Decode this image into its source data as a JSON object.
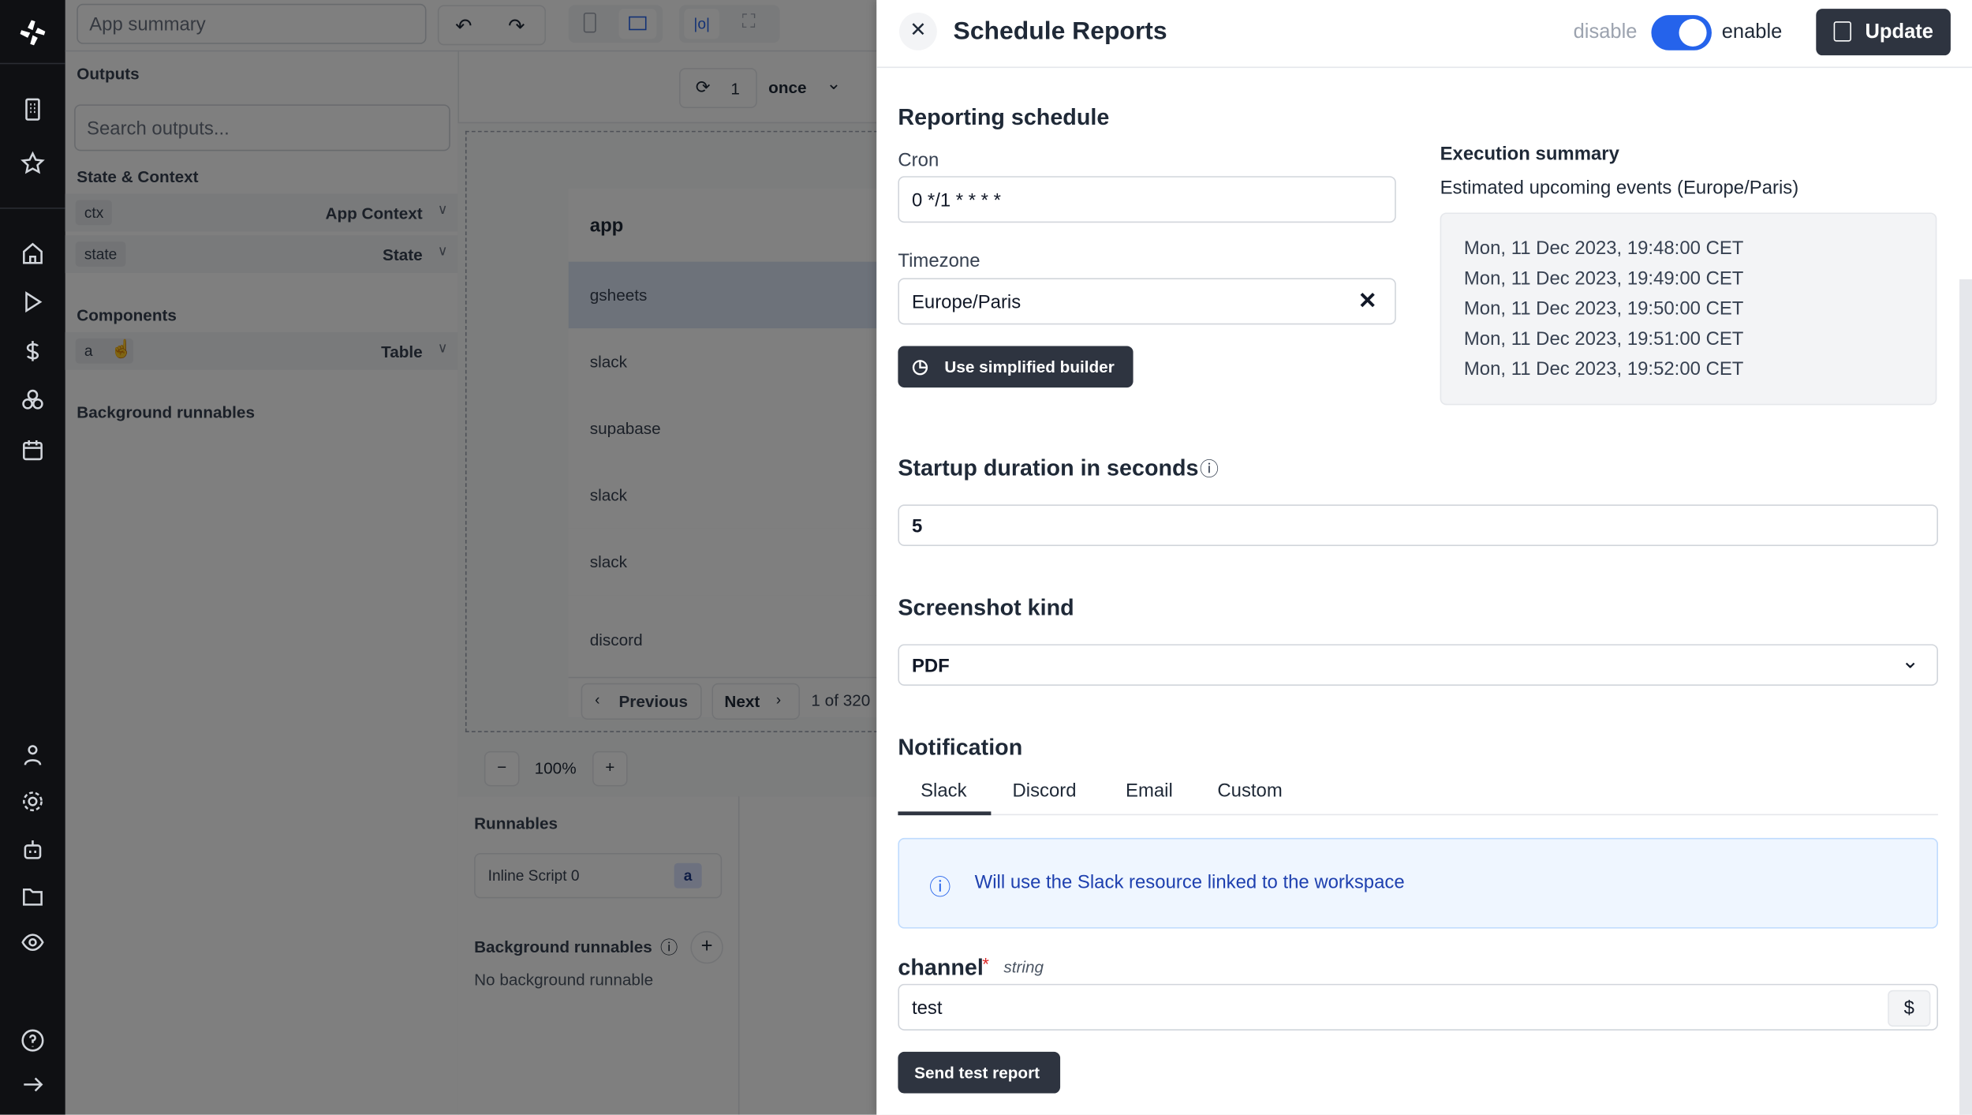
{
  "app": {
    "summary_placeholder": "App summary",
    "outputs_title": "Outputs",
    "search_placeholder": "Search outputs...",
    "state_context_title": "State & Context",
    "rows": [
      {
        "chip": "ctx",
        "type": "App Context"
      },
      {
        "chip": "state",
        "type": "State"
      }
    ],
    "components_title": "Components",
    "component": {
      "chip": "a",
      "type": "Table"
    },
    "background_title": "Background runnables",
    "refresh_count": "1",
    "refresh_mode": "once",
    "table": {
      "header": "app",
      "rows": [
        "gsheets",
        "slack",
        "supabase",
        "slack",
        "slack",
        "discord"
      ],
      "previous": "Previous",
      "next": "Next",
      "page_info": "1 of 320"
    },
    "zoom": "100%",
    "runnables_title": "Runnables",
    "runnable": {
      "name": "Inline Script 0",
      "badge": "a"
    },
    "bg_runnables_title": "Background runnables",
    "no_bg": "No background runnable"
  },
  "panel": {
    "title": "Schedule Reports",
    "disable": "disable",
    "enable": "enable",
    "enabled": true,
    "update": "Update",
    "reporting_title": "Reporting schedule",
    "cron_label": "Cron",
    "cron_value": "0 */1 * * * *",
    "timezone_label": "Timezone",
    "timezone_value": "Europe/Paris",
    "simplified_builder": "Use simplified builder",
    "exec_title": "Execution summary",
    "exec_subtitle": "Estimated upcoming events (Europe/Paris)",
    "events": [
      "Mon, 11 Dec 2023, 19:48:00 CET",
      "Mon, 11 Dec 2023, 19:49:00 CET",
      "Mon, 11 Dec 2023, 19:50:00 CET",
      "Mon, 11 Dec 2023, 19:51:00 CET",
      "Mon, 11 Dec 2023, 19:52:00 CET"
    ],
    "startup_title": "Startup duration in seconds",
    "startup_value": "5",
    "screenshot_title": "Screenshot kind",
    "screenshot_value": "PDF",
    "notification_title": "Notification",
    "tabs": [
      "Slack",
      "Discord",
      "Email",
      "Custom"
    ],
    "active_tab": "Slack",
    "info_text": "Will use the Slack resource linked to the workspace",
    "channel_label": "channel",
    "required_mark": "*",
    "channel_type": "string",
    "channel_value": "test",
    "send_test": "Send test report"
  },
  "colors": {
    "accent": "#2563eb",
    "dark_button": "#2e3440",
    "info_bg": "#eff6ff",
    "info_text": "#1e40af"
  }
}
